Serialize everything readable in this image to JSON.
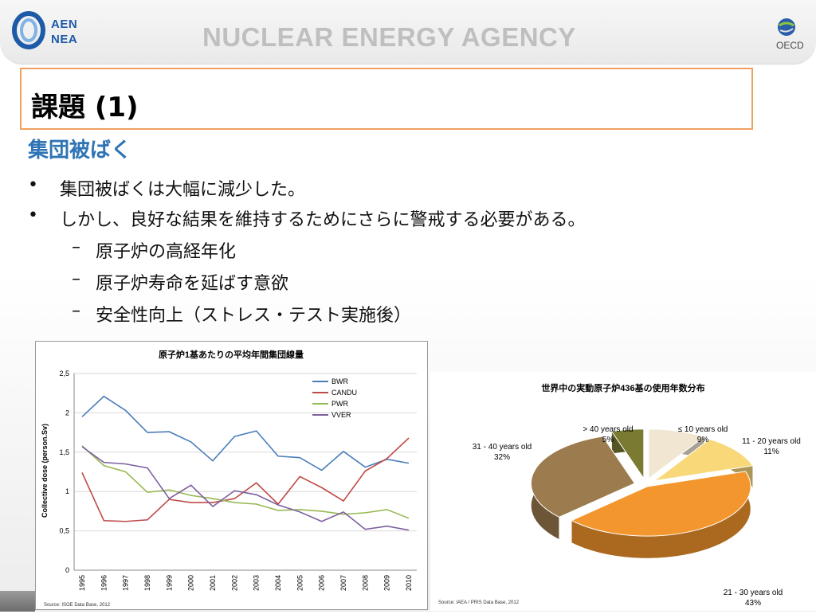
{
  "header": {
    "logo_left": {
      "line1": "AEN",
      "line2": "NEA"
    },
    "agency": "NUCLEAR ENERGY AGENCY",
    "logo_right": "OECD"
  },
  "slide": {
    "title": "課題 (1)",
    "section": "集団被ばく",
    "bullets": [
      "集団被ばくは大幅に減少した。",
      "しかし、良好な結果を維持するためにさらに警戒する必要がある。"
    ],
    "sub_bullets": [
      "原子炉の高経年化",
      "原子炉寿命を延ばす意欲",
      "安全性向上（ストレス・テスト実施後）"
    ],
    "bullet_mark": "•",
    "sub_mark": "–"
  },
  "chart_data": [
    {
      "type": "line",
      "title": "原子炉1基あたりの平均年間集団線量",
      "ylabel": "Collective dose (person.Sv)",
      "xlabel": "",
      "x": [
        "1995",
        "1996",
        "1997",
        "1998",
        "1999",
        "2000",
        "2001",
        "2002",
        "2003",
        "2004",
        "2005",
        "2006",
        "2007",
        "2008",
        "2009",
        "2010"
      ],
      "ylim": [
        0,
        2.5
      ],
      "yticks": [
        "0",
        "0,5",
        "1",
        "1,5",
        "2",
        "2,5"
      ],
      "legend_position": "top-right",
      "grid": true,
      "source": "Source: ISOE Data Base, 2012",
      "series": [
        {
          "name": "BWR",
          "color": "#4a7ebb",
          "values": [
            1.95,
            2.21,
            2.03,
            1.75,
            1.76,
            1.63,
            1.39,
            1.7,
            1.77,
            1.45,
            1.43,
            1.27,
            1.51,
            1.31,
            1.41,
            1.36
          ]
        },
        {
          "name": "CANDU",
          "color": "#be4b48",
          "values": [
            1.24,
            0.63,
            0.62,
            0.64,
            0.9,
            0.86,
            0.86,
            0.91,
            1.11,
            0.84,
            1.19,
            1.05,
            0.88,
            1.26,
            1.42,
            1.68
          ]
        },
        {
          "name": "PWR",
          "color": "#98b954",
          "values": [
            1.58,
            1.33,
            1.25,
            0.99,
            1.02,
            0.95,
            0.91,
            0.86,
            0.84,
            0.76,
            0.77,
            0.75,
            0.71,
            0.73,
            0.77,
            0.66
          ]
        },
        {
          "name": "VVER",
          "color": "#7d60a0",
          "values": [
            1.57,
            1.37,
            1.35,
            1.3,
            0.91,
            1.08,
            0.81,
            1.01,
            0.96,
            0.83,
            0.74,
            0.62,
            0.74,
            0.52,
            0.56,
            0.51
          ]
        }
      ]
    },
    {
      "type": "pie",
      "title": "世界中の実動原子炉436基の使用年数分布",
      "source": "Source: IAEA / PRIS Data Base, 2012",
      "slices": [
        {
          "label": "≤ 10 years old",
          "value": 9,
          "pct": "9%",
          "color": "#f0e6d2"
        },
        {
          "label": "11 - 20  years old",
          "value": 11,
          "pct": "11%",
          "color": "#f8d878"
        },
        {
          "label": "21 - 30  years old",
          "value": 43,
          "pct": "43%",
          "color": "#f4962e"
        },
        {
          "label": "31 - 40  years old",
          "value": 32,
          "pct": "32%",
          "color": "#9c7b4e"
        },
        {
          "label": "> 40 years old",
          "value": 5,
          "pct": "5%",
          "color": "#7a7a32"
        }
      ]
    }
  ]
}
